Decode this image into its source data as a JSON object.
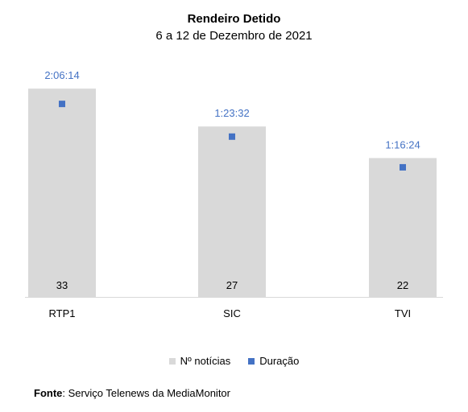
{
  "chart_data": {
    "type": "bar",
    "title": "Rendeiro Detido",
    "subtitle": "6 a 12 de Dezembro de 2021",
    "categories": [
      "RTP1",
      "SIC",
      "TVI"
    ],
    "series": [
      {
        "name": "Nº notícias",
        "kind": "bar",
        "values": [
          33,
          27,
          22
        ],
        "color": "#d9d9d9"
      },
      {
        "name": "Duração",
        "kind": "marker",
        "values": [
          "2:06:14",
          "1:23:32",
          "1:16:24"
        ],
        "color": "#4472c4"
      }
    ],
    "bar_label_color": "#000000",
    "duration_label_color": "#4472c4",
    "ylim": [
      0,
      45
    ],
    "grid": false,
    "legend_position": "bottom"
  },
  "source": {
    "label": "Fonte",
    "separator": ":",
    "text": " Serviço Telenews da MediaMonitor"
  }
}
